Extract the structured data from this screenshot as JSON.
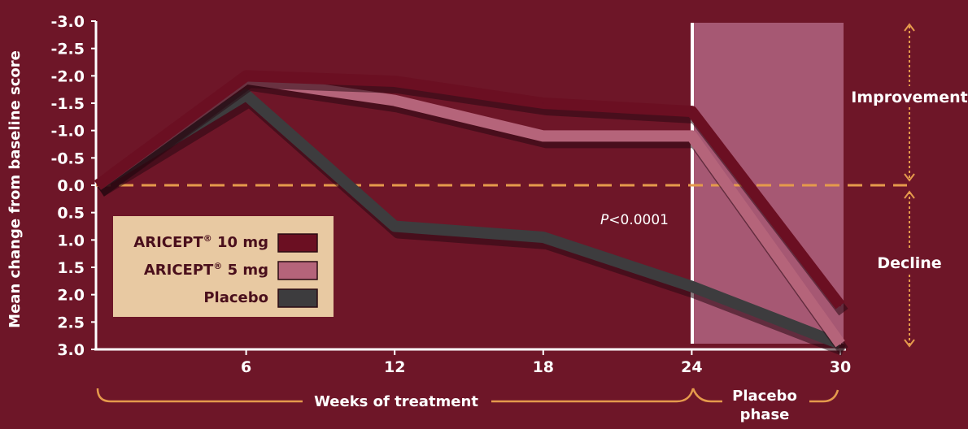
{
  "chart_data": {
    "type": "line",
    "ylabel": "Mean change from baseline score",
    "xlabel": "Weeks of treatment",
    "phase_label_line1": "Placebo",
    "phase_label_line2": "phase",
    "y_ticks": [
      "-3.0",
      "-2.5",
      "-2.0",
      "-1.5",
      "-1.0",
      "-0.5",
      "0.0",
      "0.5",
      "1.0",
      "1.5",
      "2.0",
      "2.5",
      "3.0"
    ],
    "x_ticks": [
      "6",
      "12",
      "18",
      "24",
      "30"
    ],
    "ylim": [
      -3.0,
      3.0
    ],
    "y_inverted": true,
    "improvement_label": "Improvement",
    "decline_label": "Decline",
    "p_value_prefix": "P",
    "p_value_rest": "<0.0001",
    "series": [
      {
        "name": "ARICEPT® 10 mg",
        "color": "#6b0f22",
        "x": [
          0,
          6,
          12,
          18,
          24,
          30
        ],
        "y": [
          0.0,
          -2.0,
          -1.9,
          -1.5,
          -1.35,
          2.2
        ]
      },
      {
        "name": "ARICEPT® 5 mg",
        "color": "#b5647a",
        "x": [
          0,
          6,
          12,
          18,
          24,
          30
        ],
        "y": [
          0.0,
          -1.95,
          -1.55,
          -0.9,
          -0.9,
          2.9
        ]
      },
      {
        "name": "Placebo",
        "color": "#3d3c3e",
        "x": [
          0,
          6,
          12,
          18,
          24,
          30
        ],
        "y": [
          0.0,
          -1.65,
          0.75,
          0.95,
          1.85,
          2.9
        ]
      }
    ],
    "legend": [
      {
        "label": "ARICEPT",
        "sup": "®",
        "dose": " 10 mg",
        "color": "#6b0f22"
      },
      {
        "label": "ARICEPT",
        "sup": "®",
        "dose": " 5 mg",
        "color": "#b5647a"
      },
      {
        "label": "Placebo",
        "sup": "",
        "dose": "",
        "color": "#3d3c3e"
      }
    ],
    "colors": {
      "background": "#6e1628",
      "placebo_phase_band": "#a65873",
      "baseline_dash": "#e59a4c",
      "arrows": "#e59a4c",
      "legend_box": "#e8c9a2"
    },
    "grid": false,
    "legend_position": "bottom-left"
  }
}
